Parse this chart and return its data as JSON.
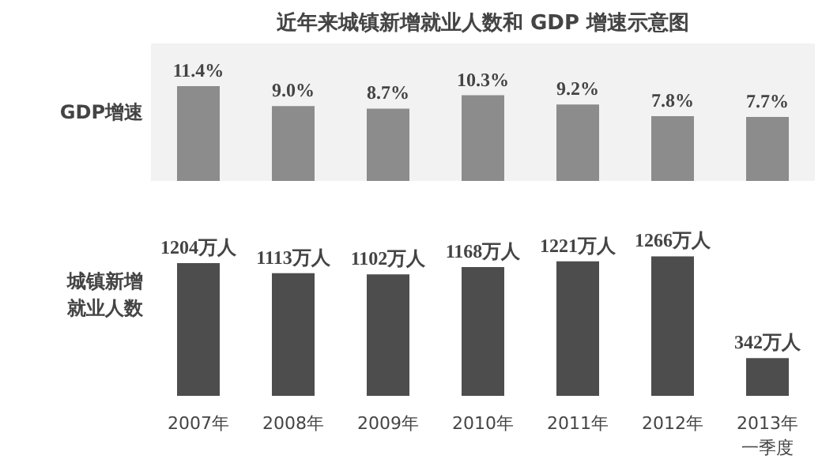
{
  "chart_data": [
    {
      "type": "bar",
      "title": "近年来城镇新增就业人数和 GDP 增速示意图",
      "ylabel": "GDP增速",
      "categories": [
        null,
        null,
        null,
        null,
        null,
        null,
        null
      ],
      "values": [
        11.4,
        9.0,
        8.7,
        10.3,
        9.2,
        7.8,
        7.7
      ],
      "value_labels": [
        "11.4%",
        "9.0%",
        "8.7%",
        "10.3%",
        "9.2%",
        "7.8%",
        "7.7%"
      ],
      "color": "#8c8c8c",
      "grid": false
    },
    {
      "type": "bar",
      "ylabel": "城镇新增就业人数",
      "categories": [
        "2007年",
        "2008年",
        "2009年",
        "2010年",
        "2011年",
        "2012年",
        "2013年一季度"
      ],
      "values": [
        1204,
        1113,
        1102,
        1168,
        1221,
        1266,
        342
      ],
      "value_labels": [
        "1204万人",
        "1113万人",
        "1102万人",
        "1168万人",
        "1221万人",
        "1266万人",
        "342万人"
      ],
      "color": "#4d4d4d",
      "grid": false
    }
  ]
}
